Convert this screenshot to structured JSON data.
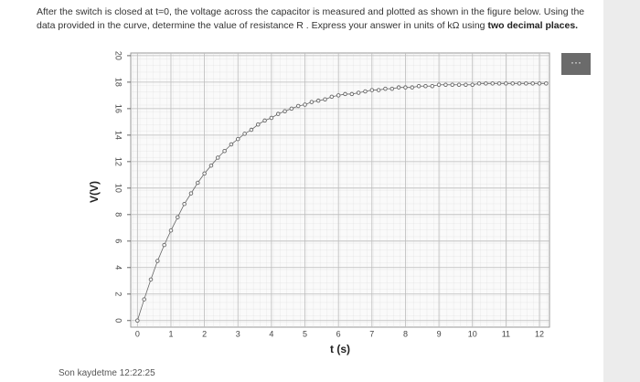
{
  "question": {
    "text": "After the switch is closed at t=0, the voltage across the capacitor is measured and plotted as shown in the figure below. Using the data provided in the curve, determine the value of resistance R . Express your answer in units of kΩ using",
    "emphasis": "two decimal places."
  },
  "menu_button": "···",
  "footer": "Son kaydetme 12:22:25",
  "chart_data": {
    "type": "line",
    "x_label": "t (s)",
    "y_label": "V(V)",
    "x": [
      0,
      0.2,
      0.4,
      0.6,
      0.8,
      1,
      1.2,
      1.4,
      1.6,
      1.8,
      2,
      2.2,
      2.4,
      2.6,
      2.8,
      3,
      3.2,
      3.4,
      3.6,
      3.8,
      4,
      4.2,
      4.4,
      4.6,
      4.8,
      5,
      5.2,
      5.4,
      5.6,
      5.8,
      6,
      6.2,
      6.4,
      6.6,
      6.8,
      7,
      7.2,
      7.4,
      7.6,
      7.8,
      8,
      8.2,
      8.4,
      8.6,
      8.8,
      9,
      9.2,
      9.4,
      9.6,
      9.8,
      10,
      10.2,
      10.4,
      10.6,
      10.8,
      11,
      11.2,
      11.4,
      11.6,
      11.8,
      12,
      12.2
    ],
    "series": [
      {
        "name": "V",
        "color": "#666666",
        "values": [
          0,
          1.6,
          3.1,
          4.5,
          5.7,
          6.8,
          7.8,
          8.8,
          9.6,
          10.4,
          11.1,
          11.7,
          12.3,
          12.8,
          13.3,
          13.7,
          14.1,
          14.4,
          14.8,
          15.1,
          15.3,
          15.6,
          15.8,
          16.0,
          16.2,
          16.3,
          16.5,
          16.6,
          16.7,
          16.9,
          17.0,
          17.1,
          17.1,
          17.2,
          17.3,
          17.4,
          17.4,
          17.5,
          17.5,
          17.6,
          17.6,
          17.6,
          17.7,
          17.7,
          17.7,
          17.8,
          17.8,
          17.8,
          17.8,
          17.8,
          17.8,
          17.9,
          17.9,
          17.9,
          17.9,
          17.9,
          17.9,
          17.9,
          17.9,
          17.9,
          17.9,
          17.9
        ]
      }
    ],
    "xlim": [
      -0.2,
      12.3
    ],
    "ylim": [
      -0.5,
      20.2
    ],
    "xticks": [
      0,
      1,
      2,
      3,
      4,
      5,
      6,
      7,
      8,
      9,
      10,
      11,
      12
    ],
    "yticks": [
      0,
      2,
      4,
      6,
      8,
      10,
      12,
      14,
      16,
      18,
      20
    ],
    "grid": true
  }
}
